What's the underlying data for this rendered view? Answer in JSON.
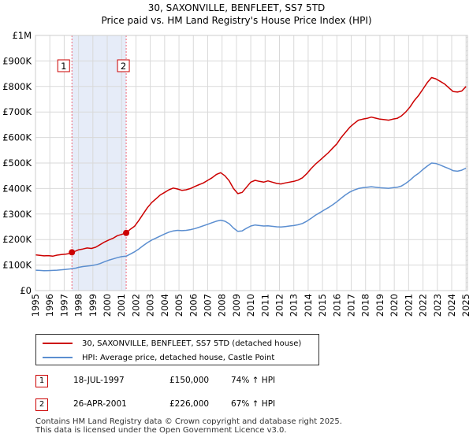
{
  "chart_data": {
    "type": "line",
    "title": "30, SAXONVILLE, BENFLEET, SS7 5TD",
    "subtitle": "Price paid vs. HM Land Registry's House Price Index (HPI)",
    "y_tick_labels": [
      "£0",
      "£100K",
      "£200K",
      "£300K",
      "£400K",
      "£500K",
      "£600K",
      "£700K",
      "£800K",
      "£900K",
      "£1M"
    ],
    "x_tick_labels": [
      "1995",
      "1996",
      "1997",
      "1998",
      "1999",
      "2000",
      "2001",
      "2002",
      "2003",
      "2004",
      "2005",
      "2006",
      "2007",
      "2008",
      "2009",
      "2010",
      "2011",
      "2012",
      "2013",
      "2014",
      "2015",
      "2016",
      "2017",
      "2018",
      "2019",
      "2020",
      "2021",
      "2022",
      "2023",
      "2024",
      "2025"
    ],
    "xlim": [
      1995.0,
      2025.1
    ],
    "ylim": [
      0,
      1000000
    ],
    "grid": true,
    "colors": {
      "property": "#cc0000",
      "hpi": "#5b8ed0",
      "shade": "#e6ecf8",
      "grid": "#d9d9d9",
      "marker_line": "#ee6677"
    },
    "series": [
      {
        "name": "30, SAXONVILLE, BENFLEET, SS7 5TD (detached house)",
        "color": "#cc0000",
        "points": [
          [
            1995.0,
            140000
          ],
          [
            1995.3,
            138000
          ],
          [
            1995.6,
            136000
          ],
          [
            1995.9,
            137000
          ],
          [
            1996.2,
            135000
          ],
          [
            1996.5,
            139000
          ],
          [
            1996.8,
            141000
          ],
          [
            1997.1,
            143000
          ],
          [
            1997.35,
            145000
          ],
          [
            1997.54,
            150000
          ],
          [
            1997.8,
            155000
          ],
          [
            1998.0,
            160000
          ],
          [
            1998.3,
            163000
          ],
          [
            1998.6,
            167000
          ],
          [
            1998.9,
            165000
          ],
          [
            1999.2,
            170000
          ],
          [
            1999.5,
            180000
          ],
          [
            1999.8,
            190000
          ],
          [
            2000.1,
            198000
          ],
          [
            2000.4,
            205000
          ],
          [
            2000.7,
            215000
          ],
          [
            2001.0,
            220000
          ],
          [
            2001.32,
            226000
          ],
          [
            2001.6,
            240000
          ],
          [
            2001.9,
            252000
          ],
          [
            2002.2,
            275000
          ],
          [
            2002.5,
            300000
          ],
          [
            2002.8,
            325000
          ],
          [
            2003.1,
            345000
          ],
          [
            2003.4,
            360000
          ],
          [
            2003.7,
            375000
          ],
          [
            2004.0,
            385000
          ],
          [
            2004.3,
            395000
          ],
          [
            2004.6,
            402000
          ],
          [
            2004.9,
            398000
          ],
          [
            2005.2,
            393000
          ],
          [
            2005.5,
            395000
          ],
          [
            2005.8,
            400000
          ],
          [
            2006.1,
            408000
          ],
          [
            2006.4,
            415000
          ],
          [
            2006.7,
            422000
          ],
          [
            2007.0,
            432000
          ],
          [
            2007.3,
            442000
          ],
          [
            2007.6,
            455000
          ],
          [
            2007.9,
            462000
          ],
          [
            2008.2,
            450000
          ],
          [
            2008.5,
            430000
          ],
          [
            2008.8,
            400000
          ],
          [
            2009.1,
            380000
          ],
          [
            2009.4,
            385000
          ],
          [
            2009.7,
            405000
          ],
          [
            2010.0,
            425000
          ],
          [
            2010.3,
            432000
          ],
          [
            2010.6,
            428000
          ],
          [
            2010.9,
            425000
          ],
          [
            2011.2,
            430000
          ],
          [
            2011.5,
            425000
          ],
          [
            2011.8,
            420000
          ],
          [
            2012.1,
            418000
          ],
          [
            2012.4,
            422000
          ],
          [
            2012.7,
            425000
          ],
          [
            2013.0,
            428000
          ],
          [
            2013.3,
            433000
          ],
          [
            2013.6,
            442000
          ],
          [
            2013.9,
            458000
          ],
          [
            2014.2,
            478000
          ],
          [
            2014.5,
            495000
          ],
          [
            2014.8,
            510000
          ],
          [
            2015.1,
            525000
          ],
          [
            2015.4,
            540000
          ],
          [
            2015.7,
            558000
          ],
          [
            2016.0,
            575000
          ],
          [
            2016.3,
            600000
          ],
          [
            2016.6,
            620000
          ],
          [
            2016.9,
            640000
          ],
          [
            2017.2,
            655000
          ],
          [
            2017.5,
            668000
          ],
          [
            2017.8,
            672000
          ],
          [
            2018.1,
            675000
          ],
          [
            2018.4,
            680000
          ],
          [
            2018.7,
            676000
          ],
          [
            2019.0,
            672000
          ],
          [
            2019.3,
            670000
          ],
          [
            2019.6,
            668000
          ],
          [
            2019.9,
            672000
          ],
          [
            2020.2,
            675000
          ],
          [
            2020.5,
            685000
          ],
          [
            2020.8,
            700000
          ],
          [
            2021.1,
            720000
          ],
          [
            2021.4,
            745000
          ],
          [
            2021.7,
            765000
          ],
          [
            2022.0,
            790000
          ],
          [
            2022.3,
            815000
          ],
          [
            2022.6,
            835000
          ],
          [
            2022.9,
            830000
          ],
          [
            2023.2,
            820000
          ],
          [
            2023.5,
            810000
          ],
          [
            2023.8,
            795000
          ],
          [
            2024.1,
            780000
          ],
          [
            2024.4,
            778000
          ],
          [
            2024.7,
            782000
          ],
          [
            2025.0,
            800000
          ]
        ]
      },
      {
        "name": "HPI: Average price, detached house, Castle Point",
        "color": "#5b8ed0",
        "points": [
          [
            1995.0,
            80000
          ],
          [
            1995.3,
            79000
          ],
          [
            1995.6,
            78000
          ],
          [
            1995.9,
            78500
          ],
          [
            1996.2,
            79000
          ],
          [
            1996.5,
            80000
          ],
          [
            1996.8,
            81500
          ],
          [
            1997.1,
            83000
          ],
          [
            1997.4,
            85000
          ],
          [
            1997.54,
            86000
          ],
          [
            1997.8,
            88000
          ],
          [
            1998.0,
            91000
          ],
          [
            1998.3,
            94000
          ],
          [
            1998.6,
            96000
          ],
          [
            1998.9,
            98000
          ],
          [
            1999.2,
            101000
          ],
          [
            1999.5,
            106000
          ],
          [
            1999.8,
            113000
          ],
          [
            2000.1,
            119000
          ],
          [
            2000.4,
            124000
          ],
          [
            2000.7,
            129000
          ],
          [
            2001.0,
            133000
          ],
          [
            2001.32,
            135000
          ],
          [
            2001.6,
            143000
          ],
          [
            2001.9,
            152000
          ],
          [
            2002.2,
            163000
          ],
          [
            2002.5,
            176000
          ],
          [
            2002.8,
            188000
          ],
          [
            2003.1,
            198000
          ],
          [
            2003.4,
            206000
          ],
          [
            2003.7,
            214000
          ],
          [
            2004.0,
            222000
          ],
          [
            2004.3,
            229000
          ],
          [
            2004.6,
            234000
          ],
          [
            2004.9,
            236000
          ],
          [
            2005.2,
            235000
          ],
          [
            2005.5,
            236000
          ],
          [
            2005.8,
            239000
          ],
          [
            2006.1,
            243000
          ],
          [
            2006.4,
            248000
          ],
          [
            2006.7,
            254000
          ],
          [
            2007.0,
            260000
          ],
          [
            2007.3,
            266000
          ],
          [
            2007.6,
            272000
          ],
          [
            2007.9,
            276000
          ],
          [
            2008.2,
            272000
          ],
          [
            2008.5,
            262000
          ],
          [
            2008.8,
            245000
          ],
          [
            2009.1,
            232000
          ],
          [
            2009.4,
            234000
          ],
          [
            2009.7,
            244000
          ],
          [
            2010.0,
            253000
          ],
          [
            2010.3,
            257000
          ],
          [
            2010.6,
            255000
          ],
          [
            2010.9,
            253000
          ],
          [
            2011.2,
            254000
          ],
          [
            2011.5,
            252000
          ],
          [
            2011.8,
            250000
          ],
          [
            2012.1,
            249000
          ],
          [
            2012.4,
            251000
          ],
          [
            2012.7,
            253000
          ],
          [
            2013.0,
            255000
          ],
          [
            2013.3,
            258000
          ],
          [
            2013.6,
            263000
          ],
          [
            2013.9,
            272000
          ],
          [
            2014.2,
            283000
          ],
          [
            2014.5,
            295000
          ],
          [
            2014.8,
            305000
          ],
          [
            2015.1,
            315000
          ],
          [
            2015.4,
            325000
          ],
          [
            2015.7,
            336000
          ],
          [
            2016.0,
            348000
          ],
          [
            2016.3,
            362000
          ],
          [
            2016.6,
            375000
          ],
          [
            2016.9,
            386000
          ],
          [
            2017.2,
            394000
          ],
          [
            2017.5,
            400000
          ],
          [
            2017.8,
            403000
          ],
          [
            2018.1,
            405000
          ],
          [
            2018.4,
            407000
          ],
          [
            2018.7,
            405000
          ],
          [
            2019.0,
            403000
          ],
          [
            2019.3,
            402000
          ],
          [
            2019.6,
            401000
          ],
          [
            2019.9,
            403000
          ],
          [
            2020.2,
            405000
          ],
          [
            2020.5,
            410000
          ],
          [
            2020.8,
            420000
          ],
          [
            2021.1,
            433000
          ],
          [
            2021.4,
            448000
          ],
          [
            2021.7,
            460000
          ],
          [
            2022.0,
            475000
          ],
          [
            2022.3,
            488000
          ],
          [
            2022.6,
            500000
          ],
          [
            2022.9,
            498000
          ],
          [
            2023.2,
            492000
          ],
          [
            2023.5,
            485000
          ],
          [
            2023.8,
            478000
          ],
          [
            2024.1,
            470000
          ],
          [
            2024.4,
            468000
          ],
          [
            2024.7,
            472000
          ],
          [
            2025.0,
            480000
          ]
        ]
      }
    ],
    "sales": [
      {
        "id": "1",
        "date": "18-JUL-1997",
        "year": 1997.54,
        "price": 150000,
        "price_label": "£150,000",
        "hpi": "74% ↑ HPI"
      },
      {
        "id": "2",
        "date": "26-APR-2001",
        "year": 2001.32,
        "price": 226000,
        "price_label": "£226,000",
        "hpi": "67% ↑ HPI"
      }
    ],
    "shaded_ranges": [
      [
        1997.54,
        2001.32
      ]
    ]
  },
  "legend": {
    "property_label": "30, SAXONVILLE, BENFLEET, SS7 5TD (detached house)",
    "hpi_label": "HPI: Average price, detached house, Castle Point"
  },
  "footer": {
    "line1": "Contains HM Land Registry data © Crown copyright and database right 2025.",
    "line2": "This data is licensed under the Open Government Licence v3.0."
  }
}
